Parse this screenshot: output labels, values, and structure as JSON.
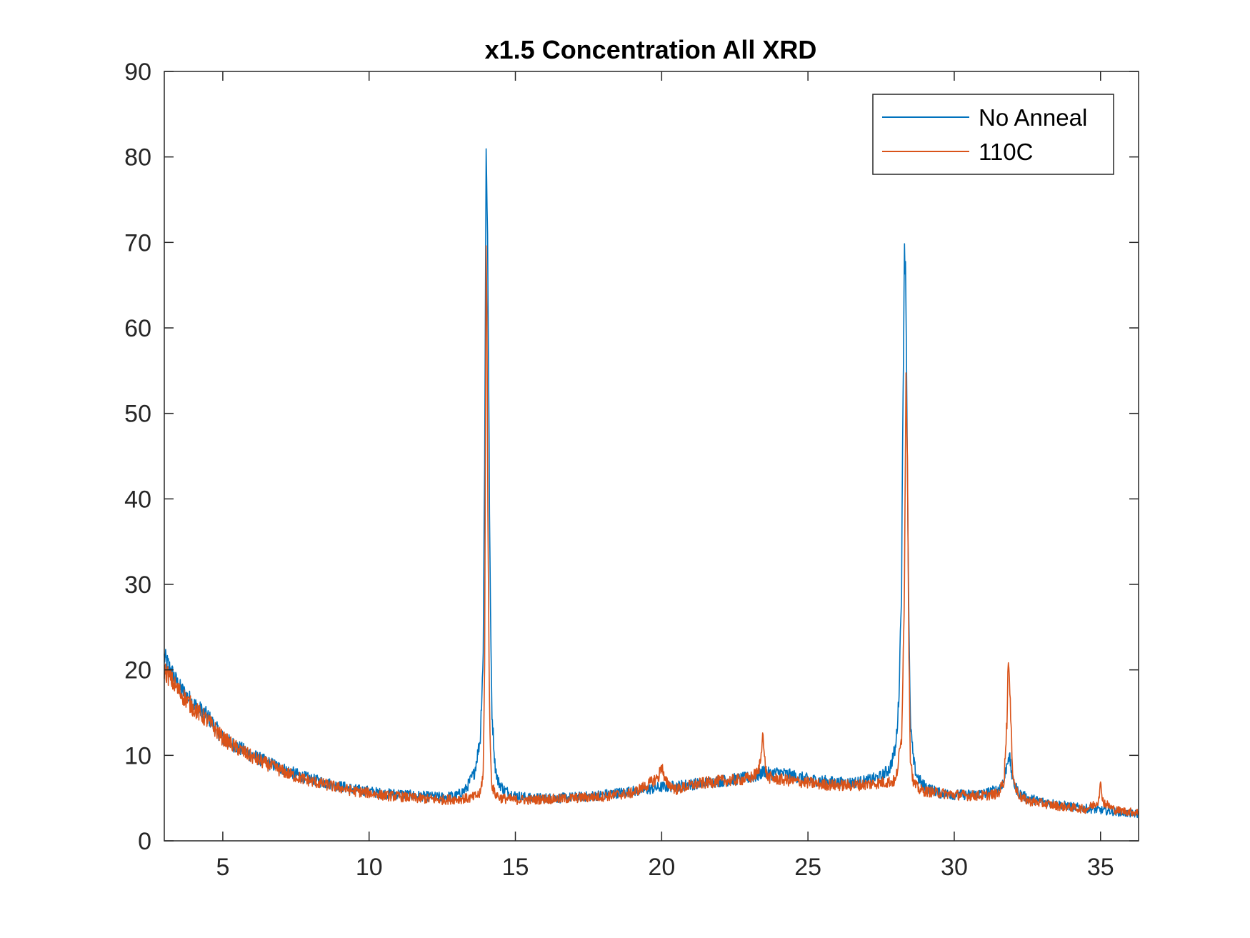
{
  "chart_data": {
    "type": "line",
    "title": "x1.5 Concentration All XRD",
    "xlabel": "",
    "ylabel": "",
    "xlim": [
      3.0,
      36.3
    ],
    "ylim": [
      0,
      90
    ],
    "xticks": [
      5,
      10,
      15,
      20,
      25,
      30,
      35
    ],
    "yticks": [
      0,
      10,
      20,
      30,
      40,
      50,
      60,
      70,
      80,
      90
    ],
    "grid": false,
    "legend": {
      "placement": "top-right"
    },
    "series": [
      {
        "name": "No Anneal",
        "color": "#0072BD",
        "x": [
          3.0,
          3.5,
          4.0,
          4.5,
          5.0,
          5.5,
          6.0,
          6.5,
          7.0,
          7.5,
          8.0,
          8.5,
          9.0,
          9.5,
          10.0,
          10.5,
          11.0,
          11.5,
          12.0,
          12.5,
          13.0,
          13.3,
          13.6,
          13.8,
          13.9,
          13.95,
          14.0,
          14.05,
          14.1,
          14.15,
          14.2,
          14.3,
          14.4,
          14.6,
          14.8,
          15.0,
          15.5,
          16.0,
          16.5,
          17.0,
          17.5,
          18.0,
          18.5,
          19.0,
          19.5,
          20.0,
          20.5,
          21.0,
          21.5,
          22.0,
          22.5,
          23.0,
          23.3,
          23.5,
          23.7,
          24.0,
          24.5,
          25.0,
          25.5,
          26.0,
          26.5,
          27.0,
          27.5,
          27.8,
          28.0,
          28.1,
          28.2,
          28.25,
          28.3,
          28.35,
          28.4,
          28.45,
          28.5,
          28.6,
          28.7,
          28.9,
          29.2,
          29.5,
          30.0,
          30.5,
          31.0,
          31.5,
          31.7,
          31.85,
          31.9,
          32.0,
          32.2,
          32.5,
          33.0,
          33.5,
          34.0,
          34.5,
          35.0,
          35.5,
          36.0,
          36.3
        ],
        "y": [
          21.5,
          18.0,
          16.0,
          14.5,
          12.0,
          11.0,
          10.0,
          9.2,
          8.5,
          7.8,
          7.2,
          6.8,
          6.4,
          6.0,
          5.8,
          5.5,
          5.5,
          5.3,
          5.2,
          5.1,
          5.3,
          6.0,
          8.0,
          12.0,
          22.0,
          45.0,
          80.5,
          72.0,
          46.0,
          26.0,
          15.0,
          9.0,
          7.0,
          6.0,
          5.6,
          5.3,
          5.0,
          5.0,
          5.0,
          5.1,
          5.2,
          5.4,
          5.6,
          5.8,
          6.0,
          6.3,
          6.4,
          6.6,
          6.8,
          7.0,
          7.2,
          7.4,
          7.6,
          8.2,
          7.8,
          8.0,
          7.6,
          7.2,
          7.0,
          6.8,
          6.8,
          7.0,
          7.5,
          8.5,
          11.0,
          16.0,
          30.0,
          52.0,
          70.5,
          64.0,
          44.0,
          25.0,
          14.0,
          9.5,
          7.8,
          6.6,
          6.0,
          5.6,
          5.4,
          5.4,
          5.5,
          6.0,
          7.0,
          10.0,
          9.5,
          7.0,
          5.6,
          5.0,
          4.6,
          4.3,
          4.0,
          3.8,
          3.6,
          3.4,
          3.2,
          3.1
        ]
      },
      {
        "name": "110C",
        "color": "#D95319",
        "x": [
          3.0,
          3.5,
          4.0,
          4.5,
          5.0,
          5.5,
          6.0,
          6.5,
          7.0,
          7.5,
          8.0,
          8.5,
          9.0,
          9.5,
          10.0,
          10.5,
          11.0,
          11.5,
          12.0,
          12.5,
          13.0,
          13.5,
          13.8,
          13.9,
          13.95,
          14.0,
          14.03,
          14.06,
          14.1,
          14.15,
          14.2,
          14.3,
          14.5,
          15.0,
          15.5,
          16.0,
          16.5,
          17.0,
          17.5,
          18.0,
          18.5,
          19.0,
          19.5,
          19.9,
          20.0,
          20.1,
          20.5,
          21.0,
          21.5,
          22.0,
          22.5,
          23.0,
          23.3,
          23.4,
          23.45,
          23.5,
          23.6,
          23.8,
          24.0,
          24.5,
          25.0,
          25.5,
          26.0,
          26.5,
          27.0,
          27.5,
          28.0,
          28.2,
          28.3,
          28.35,
          28.4,
          28.45,
          28.5,
          28.6,
          28.8,
          29.0,
          29.5,
          30.0,
          30.5,
          31.0,
          31.5,
          31.7,
          31.8,
          31.85,
          31.9,
          32.0,
          32.1,
          32.3,
          32.5,
          33.0,
          33.5,
          34.0,
          34.5,
          34.9,
          35.0,
          35.1,
          35.5,
          36.0,
          36.3
        ],
        "y": [
          20.0,
          17.5,
          15.5,
          14.0,
          12.0,
          10.8,
          9.8,
          9.0,
          8.2,
          7.5,
          7.0,
          6.6,
          6.2,
          5.8,
          5.6,
          5.3,
          5.2,
          5.0,
          4.9,
          4.8,
          4.9,
          5.0,
          5.5,
          8.0,
          20.0,
          71.5,
          60.0,
          40.0,
          20.0,
          10.0,
          6.5,
          5.5,
          5.0,
          4.8,
          4.8,
          4.9,
          4.9,
          5.0,
          5.1,
          5.2,
          5.4,
          5.6,
          6.5,
          7.5,
          9.0,
          7.0,
          6.0,
          6.5,
          6.8,
          7.0,
          7.1,
          7.3,
          8.0,
          10.0,
          13.5,
          10.0,
          7.5,
          7.3,
          7.2,
          7.0,
          6.8,
          6.6,
          6.5,
          6.5,
          6.6,
          6.8,
          7.0,
          12.0,
          30.0,
          56.0,
          45.0,
          22.0,
          10.0,
          6.8,
          6.0,
          5.8,
          5.6,
          5.4,
          5.3,
          5.3,
          5.5,
          7.0,
          14.0,
          22.0,
          17.0,
          8.0,
          6.0,
          5.0,
          4.7,
          4.4,
          4.1,
          3.9,
          3.7,
          4.5,
          6.5,
          4.5,
          3.6,
          3.4,
          3.3
        ]
      }
    ]
  }
}
